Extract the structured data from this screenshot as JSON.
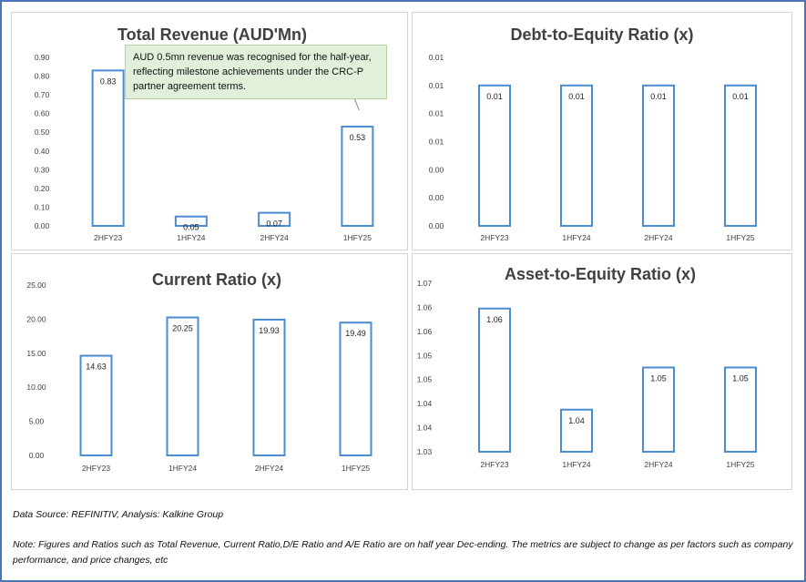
{
  "chart_data": [
    {
      "id": "rev",
      "type": "bar",
      "title": "Total Revenue (AUD'Mn)",
      "categories": [
        "2HFY23",
        "1HFY24",
        "2HFY24",
        "1HFY25"
      ],
      "values": [
        0.83,
        0.05,
        0.07,
        0.53
      ],
      "value_labels": [
        "0.83",
        "0.05",
        "0.07",
        "0.53"
      ],
      "yticks": [
        "0.00",
        "0.10",
        "0.20",
        "0.30",
        "0.40",
        "0.50",
        "0.60",
        "0.70",
        "0.80",
        "0.90"
      ],
      "ylim": [
        0,
        0.9
      ],
      "grid": false,
      "annotation": "AUD 0.5mn revenue was recognised for the half-year, reflecting milestone achievements under the CRC-P partner agreement terms."
    },
    {
      "id": "de",
      "type": "bar",
      "title": "Debt-to-Equity Ratio (x)",
      "categories": [
        "2HFY23",
        "1HFY24",
        "2HFY24",
        "1HFY25"
      ],
      "values": [
        0.01,
        0.01,
        0.01,
        0.01
      ],
      "value_labels": [
        "0.01",
        "0.01",
        "0.01",
        "0.01"
      ],
      "yticks": [
        "0.00",
        "0.00",
        "0.00",
        "0.01",
        "0.01",
        "0.01",
        "0.01"
      ],
      "ylim": [
        0,
        0.012
      ],
      "grid": false
    },
    {
      "id": "cr",
      "type": "bar",
      "title": "Current Ratio (x)",
      "categories": [
        "2HFY23",
        "1HFY24",
        "2HFY24",
        "1HFY25"
      ],
      "values": [
        14.63,
        20.25,
        19.93,
        19.49
      ],
      "value_labels": [
        "14.63",
        "20.25",
        "19.93",
        "19.49"
      ],
      "yticks": [
        "0.00",
        "5.00",
        "10.00",
        "15.00",
        "20.00",
        "25.00"
      ],
      "ylim": [
        0,
        25
      ],
      "grid": false
    },
    {
      "id": "ae",
      "type": "bar",
      "title": "Asset-to-Equity Ratio (x)",
      "categories": [
        "2HFY23",
        "1HFY24",
        "2HFY24",
        "1HFY25"
      ],
      "values": [
        1.064,
        1.04,
        1.05,
        1.05
      ],
      "value_labels": [
        "1.06",
        "1.04",
        "1.05",
        "1.05"
      ],
      "yticks": [
        "1.03",
        "1.04",
        "1.04",
        "1.05",
        "1.05",
        "1.06",
        "1.06",
        "1.07"
      ],
      "ylim": [
        1.03,
        1.07
      ],
      "grid": false
    }
  ],
  "colors": {
    "bar_stroke": "#4a8ccf",
    "axis_text": "#404040",
    "title_text": "#404040"
  },
  "source": "Data Source: REFINITIV, Analysis: Kalkine Group",
  "note": "Note: Figures and Ratios such as Total Revenue, Current Ratio,D/E Ratio and A/E Ratio are on half year Dec-ending. The metrics are subject to change as per factors such as company performance, and price changes, etc"
}
